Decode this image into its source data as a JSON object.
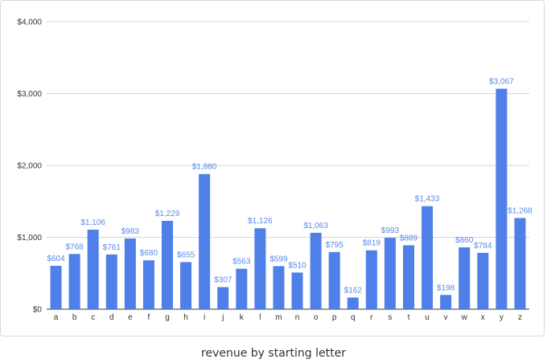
{
  "caption": "revenue by starting letter",
  "chart_data": {
    "type": "bar",
    "categories": [
      "a",
      "b",
      "c",
      "d",
      "e",
      "f",
      "g",
      "h",
      "i",
      "j",
      "k",
      "l",
      "m",
      "n",
      "o",
      "p",
      "q",
      "r",
      "s",
      "t",
      "u",
      "v",
      "w",
      "x",
      "y",
      "z"
    ],
    "values": [
      604,
      768,
      1106,
      761,
      983,
      680,
      1229,
      655,
      1880,
      307,
      563,
      1126,
      599,
      510,
      1063,
      795,
      162,
      819,
      993,
      889,
      1433,
      198,
      860,
      784,
      3067,
      1268
    ],
    "data_labels": [
      "$604",
      "$768",
      "$1,106",
      "$761",
      "$983",
      "$680",
      "$1,229",
      "$655",
      "$1,880",
      "$307",
      "$563",
      "$1,126",
      "$599",
      "$510",
      "$1,063",
      "$795",
      "$162",
      "$819",
      "$993",
      "$889",
      "$1,433",
      "$198",
      "$860",
      "$784",
      "$3,067",
      "$1,268"
    ],
    "y_ticks": [
      0,
      1000,
      2000,
      3000,
      4000
    ],
    "y_tick_labels": [
      "$0",
      "$1,000",
      "$2,000",
      "$3,000",
      "$4,000"
    ],
    "ylim": [
      0,
      4000
    ],
    "grid": true,
    "legend": "none",
    "colors": {
      "bar": "#4f7fe8",
      "data_label": "#5b8ae6",
      "grid": "#d6d6d6",
      "axis_text": "#333333"
    }
  }
}
